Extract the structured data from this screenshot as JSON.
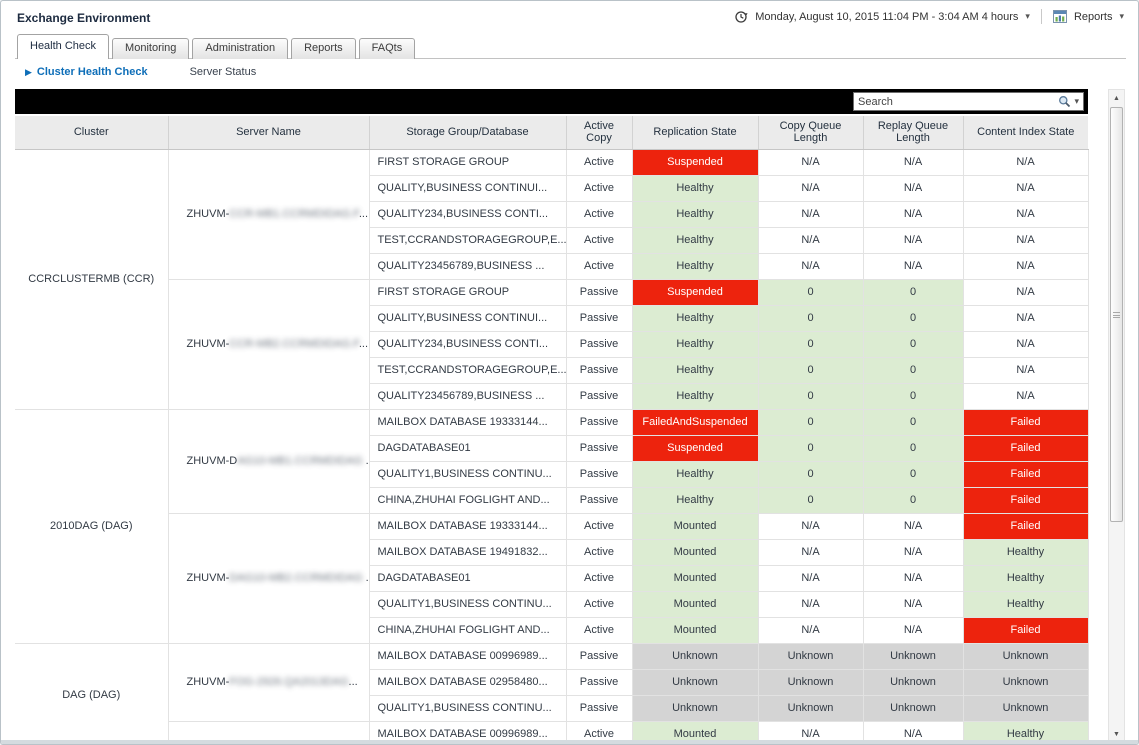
{
  "window": {
    "title": "Exchange Environment"
  },
  "top_right": {
    "time_range": "Monday, August 10, 2015 11:04 PM - 3:04 AM 4 hours",
    "reports_label": "Reports"
  },
  "tabs": [
    {
      "label": "Health Check",
      "active": true
    },
    {
      "label": "Monitoring",
      "active": false
    },
    {
      "label": "Administration",
      "active": false
    },
    {
      "label": "Reports",
      "active": false
    },
    {
      "label": "FAQts",
      "active": false
    }
  ],
  "subnav": {
    "items": [
      {
        "label": "Cluster Health Check",
        "selected": true
      },
      {
        "label": "Server Status",
        "selected": false
      }
    ]
  },
  "search": {
    "placeholder": "Search"
  },
  "glyphs": {
    "caret_down": "▾",
    "breadcrumb_arrow": "▶",
    "scroll_up": "▲",
    "scroll_down": "▼"
  },
  "colors": {
    "critical": "#ed230d",
    "critical_text": "#ffffff",
    "healthy": "#dcecd2",
    "unknown": "#d4d4d4",
    "link": "#0e6eb8",
    "toolbar": "#000000",
    "header_row": "#ebebeb"
  },
  "table": {
    "columns": [
      "Cluster",
      "Server Name",
      "Storage Group/Database",
      "Active Copy",
      "Replication State",
      "Copy Queue Length",
      "Replay Queue Length",
      "Content Index State"
    ],
    "groups": [
      {
        "cluster": "CCRCLUSTERMB (CCR)",
        "servers": [
          {
            "name": {
              "prefix": "ZHUVM-",
              "redacted": "CCR-MB1.CCRMDIDAG.F",
              "trail": "..."
            },
            "rows": [
              {
                "storage": "FIRST STORAGE GROUP",
                "active_copy": "Active",
                "replication": {
                  "text": "Suspended",
                  "state": "red"
                },
                "copy_queue": {
                  "text": "N/A",
                  "state": "white"
                },
                "replay_queue": {
                  "text": "N/A",
                  "state": "white"
                },
                "content_index": {
                  "text": "N/A",
                  "state": "white"
                }
              },
              {
                "storage": "QUALITY,BUSINESS CONTINUI...",
                "active_copy": "Active",
                "replication": {
                  "text": "Healthy",
                  "state": "green"
                },
                "copy_queue": {
                  "text": "N/A",
                  "state": "white"
                },
                "replay_queue": {
                  "text": "N/A",
                  "state": "white"
                },
                "content_index": {
                  "text": "N/A",
                  "state": "white"
                }
              },
              {
                "storage": "QUALITY234,BUSINESS CONTI...",
                "active_copy": "Active",
                "replication": {
                  "text": "Healthy",
                  "state": "green"
                },
                "copy_queue": {
                  "text": "N/A",
                  "state": "white"
                },
                "replay_queue": {
                  "text": "N/A",
                  "state": "white"
                },
                "content_index": {
                  "text": "N/A",
                  "state": "white"
                }
              },
              {
                "storage": "TEST,CCRANDSTORAGEGROUP,E...",
                "active_copy": "Active",
                "replication": {
                  "text": "Healthy",
                  "state": "green"
                },
                "copy_queue": {
                  "text": "N/A",
                  "state": "white"
                },
                "replay_queue": {
                  "text": "N/A",
                  "state": "white"
                },
                "content_index": {
                  "text": "N/A",
                  "state": "white"
                }
              },
              {
                "storage": "QUALITY23456789,BUSINESS ...",
                "active_copy": "Active",
                "replication": {
                  "text": "Healthy",
                  "state": "green"
                },
                "copy_queue": {
                  "text": "N/A",
                  "state": "white"
                },
                "replay_queue": {
                  "text": "N/A",
                  "state": "white"
                },
                "content_index": {
                  "text": "N/A",
                  "state": "white"
                }
              }
            ]
          },
          {
            "name": {
              "prefix": "ZHUVM-",
              "redacted": "CCR-MB2.CCRMDIDAG.F",
              "trail": "..."
            },
            "rows": [
              {
                "storage": "FIRST STORAGE GROUP",
                "active_copy": "Passive",
                "replication": {
                  "text": "Suspended",
                  "state": "red"
                },
                "copy_queue": {
                  "text": "0",
                  "state": "green"
                },
                "replay_queue": {
                  "text": "0",
                  "state": "green"
                },
                "content_index": {
                  "text": "N/A",
                  "state": "white"
                }
              },
              {
                "storage": "QUALITY,BUSINESS CONTINUI...",
                "active_copy": "Passive",
                "replication": {
                  "text": "Healthy",
                  "state": "green"
                },
                "copy_queue": {
                  "text": "0",
                  "state": "green"
                },
                "replay_queue": {
                  "text": "0",
                  "state": "green"
                },
                "content_index": {
                  "text": "N/A",
                  "state": "white"
                }
              },
              {
                "storage": "QUALITY234,BUSINESS CONTI...",
                "active_copy": "Passive",
                "replication": {
                  "text": "Healthy",
                  "state": "green"
                },
                "copy_queue": {
                  "text": "0",
                  "state": "green"
                },
                "replay_queue": {
                  "text": "0",
                  "state": "green"
                },
                "content_index": {
                  "text": "N/A",
                  "state": "white"
                }
              },
              {
                "storage": "TEST,CCRANDSTORAGEGROUP,E...",
                "active_copy": "Passive",
                "replication": {
                  "text": "Healthy",
                  "state": "green"
                },
                "copy_queue": {
                  "text": "0",
                  "state": "green"
                },
                "replay_queue": {
                  "text": "0",
                  "state": "green"
                },
                "content_index": {
                  "text": "N/A",
                  "state": "white"
                }
              },
              {
                "storage": "QUALITY23456789,BUSINESS ...",
                "active_copy": "Passive",
                "replication": {
                  "text": "Healthy",
                  "state": "green"
                },
                "copy_queue": {
                  "text": "0",
                  "state": "green"
                },
                "replay_queue": {
                  "text": "0",
                  "state": "green"
                },
                "content_index": {
                  "text": "N/A",
                  "state": "white"
                }
              }
            ]
          }
        ]
      },
      {
        "cluster": "2010DAG (DAG)",
        "servers": [
          {
            "name": {
              "prefix": "ZHUVM-D",
              "redacted": "AG10-MB1.CCRMDIDAG",
              "trail": " .."
            },
            "rows": [
              {
                "storage": "MAILBOX DATABASE 19333144...",
                "active_copy": "Passive",
                "replication": {
                  "text": "FailedAndSuspended",
                  "state": "red"
                },
                "copy_queue": {
                  "text": "0",
                  "state": "green"
                },
                "replay_queue": {
                  "text": "0",
                  "state": "green"
                },
                "content_index": {
                  "text": "Failed",
                  "state": "red"
                }
              },
              {
                "storage": "DAGDATABASE01",
                "active_copy": "Passive",
                "replication": {
                  "text": "Suspended",
                  "state": "red"
                },
                "copy_queue": {
                  "text": "0",
                  "state": "green"
                },
                "replay_queue": {
                  "text": "0",
                  "state": "green"
                },
                "content_index": {
                  "text": "Failed",
                  "state": "red"
                }
              },
              {
                "storage": "QUALITY1,BUSINESS CONTINU...",
                "active_copy": "Passive",
                "replication": {
                  "text": "Healthy",
                  "state": "green"
                },
                "copy_queue": {
                  "text": "0",
                  "state": "green"
                },
                "replay_queue": {
                  "text": "0",
                  "state": "green"
                },
                "content_index": {
                  "text": "Failed",
                  "state": "red"
                }
              },
              {
                "storage": "CHINA,ZHUHAI FOGLIGHT AND...",
                "active_copy": "Passive",
                "replication": {
                  "text": "Healthy",
                  "state": "green"
                },
                "copy_queue": {
                  "text": "0",
                  "state": "green"
                },
                "replay_queue": {
                  "text": "0",
                  "state": "green"
                },
                "content_index": {
                  "text": "Failed",
                  "state": "red"
                }
              }
            ]
          },
          {
            "name": {
              "prefix": "ZHUVM-",
              "redacted": "DAG10-MB2.CCRMDIDAG",
              "trail": " .."
            },
            "rows": [
              {
                "storage": "MAILBOX DATABASE 19333144...",
                "active_copy": "Active",
                "replication": {
                  "text": "Mounted",
                  "state": "green"
                },
                "copy_queue": {
                  "text": "N/A",
                  "state": "white"
                },
                "replay_queue": {
                  "text": "N/A",
                  "state": "white"
                },
                "content_index": {
                  "text": "Failed",
                  "state": "red"
                }
              },
              {
                "storage": "MAILBOX DATABASE 19491832...",
                "active_copy": "Active",
                "replication": {
                  "text": "Mounted",
                  "state": "green"
                },
                "copy_queue": {
                  "text": "N/A",
                  "state": "white"
                },
                "replay_queue": {
                  "text": "N/A",
                  "state": "white"
                },
                "content_index": {
                  "text": "Healthy",
                  "state": "green"
                }
              },
              {
                "storage": "DAGDATABASE01",
                "active_copy": "Active",
                "replication": {
                  "text": "Mounted",
                  "state": "green"
                },
                "copy_queue": {
                  "text": "N/A",
                  "state": "white"
                },
                "replay_queue": {
                  "text": "N/A",
                  "state": "white"
                },
                "content_index": {
                  "text": "Healthy",
                  "state": "green"
                }
              },
              {
                "storage": "QUALITY1,BUSINESS CONTINU...",
                "active_copy": "Active",
                "replication": {
                  "text": "Mounted",
                  "state": "green"
                },
                "copy_queue": {
                  "text": "N/A",
                  "state": "white"
                },
                "replay_queue": {
                  "text": "N/A",
                  "state": "white"
                },
                "content_index": {
                  "text": "Healthy",
                  "state": "green"
                }
              },
              {
                "storage": "CHINA,ZHUHAI FOGLIGHT AND...",
                "active_copy": "Active",
                "replication": {
                  "text": "Mounted",
                  "state": "green"
                },
                "copy_queue": {
                  "text": "N/A",
                  "state": "white"
                },
                "replay_queue": {
                  "text": "N/A",
                  "state": "white"
                },
                "content_index": {
                  "text": "Failed",
                  "state": "red"
                }
              }
            ]
          }
        ]
      },
      {
        "cluster": "DAG (DAG)",
        "servers": [
          {
            "name": {
              "prefix": "ZHUVM-",
              "redacted": "FOG-2926.QA2013DAG",
              "trail": "..."
            },
            "rows": [
              {
                "storage": "MAILBOX DATABASE 00996989...",
                "active_copy": "Passive",
                "replication": {
                  "text": "Unknown",
                  "state": "gray"
                },
                "copy_queue": {
                  "text": "Unknown",
                  "state": "gray"
                },
                "replay_queue": {
                  "text": "Unknown",
                  "state": "gray"
                },
                "content_index": {
                  "text": "Unknown",
                  "state": "gray"
                }
              },
              {
                "storage": "MAILBOX DATABASE 02958480...",
                "active_copy": "Passive",
                "replication": {
                  "text": "Unknown",
                  "state": "gray"
                },
                "copy_queue": {
                  "text": "Unknown",
                  "state": "gray"
                },
                "replay_queue": {
                  "text": "Unknown",
                  "state": "gray"
                },
                "content_index": {
                  "text": "Unknown",
                  "state": "gray"
                }
              },
              {
                "storage": "QUALITY1,BUSINESS CONTINU...",
                "active_copy": "Passive",
                "replication": {
                  "text": "Unknown",
                  "state": "gray"
                },
                "copy_queue": {
                  "text": "Unknown",
                  "state": "gray"
                },
                "replay_queue": {
                  "text": "Unknown",
                  "state": "gray"
                },
                "content_index": {
                  "text": "Unknown",
                  "state": "gray"
                }
              }
            ]
          },
          {
            "name": {
              "prefix": "",
              "redacted": "",
              "trail": ""
            },
            "rows": [
              {
                "storage": "MAILBOX DATABASE 00996989...",
                "active_copy": "Active",
                "replication": {
                  "text": "Mounted",
                  "state": "green"
                },
                "copy_queue": {
                  "text": "N/A",
                  "state": "white"
                },
                "replay_queue": {
                  "text": "N/A",
                  "state": "white"
                },
                "content_index": {
                  "text": "Healthy",
                  "state": "green"
                }
              }
            ]
          }
        ]
      }
    ]
  }
}
